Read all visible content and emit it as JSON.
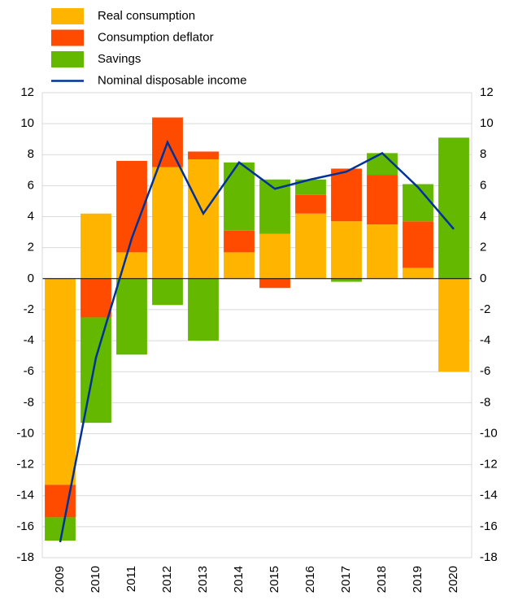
{
  "chart_data": {
    "type": "stacked_bar_line",
    "categories": [
      "2009",
      "2010",
      "2011",
      "2012",
      "2013",
      "2014",
      "2015",
      "2016",
      "2017",
      "2018",
      "2019",
      "2020"
    ],
    "series": [
      {
        "name": "Real consumption",
        "color": "#ffb400",
        "values": [
          -13.3,
          4.2,
          1.7,
          7.2,
          7.7,
          1.7,
          2.9,
          4.2,
          3.7,
          3.5,
          0.7,
          -6.0
        ]
      },
      {
        "name": "Consumption deflator",
        "color": "#ff4b00",
        "values": [
          -2.1,
          -2.5,
          5.9,
          3.2,
          0.5,
          1.4,
          -0.6,
          1.2,
          3.4,
          3.2,
          3.0,
          0
        ]
      },
      {
        "name": "Savings",
        "color": "#65b800",
        "values": [
          -1.5,
          -6.8,
          -4.9,
          -1.7,
          -4.0,
          4.4,
          3.5,
          1.0,
          -0.2,
          1.4,
          2.4,
          9.1
        ]
      },
      {
        "name": "Nominal disposable income",
        "color": "#003299",
        "kind": "line",
        "values": [
          -17.0,
          -5.1,
          2.6,
          8.8,
          4.2,
          7.5,
          5.8,
          6.4,
          6.9,
          8.1,
          5.9,
          3.2
        ]
      }
    ],
    "ylim": [
      -18,
      12
    ],
    "yticks": [
      -18,
      -16,
      -14,
      -12,
      -10,
      -8,
      -6,
      -4,
      -2,
      0,
      2,
      4,
      6,
      8,
      10,
      12
    ],
    "y2lim": [
      -18,
      12
    ],
    "y2ticks": [
      -18,
      -16,
      -14,
      -12,
      -10,
      -8,
      -6,
      -4,
      -2,
      0,
      2,
      4,
      6,
      8,
      10,
      12
    ],
    "grid": true
  }
}
